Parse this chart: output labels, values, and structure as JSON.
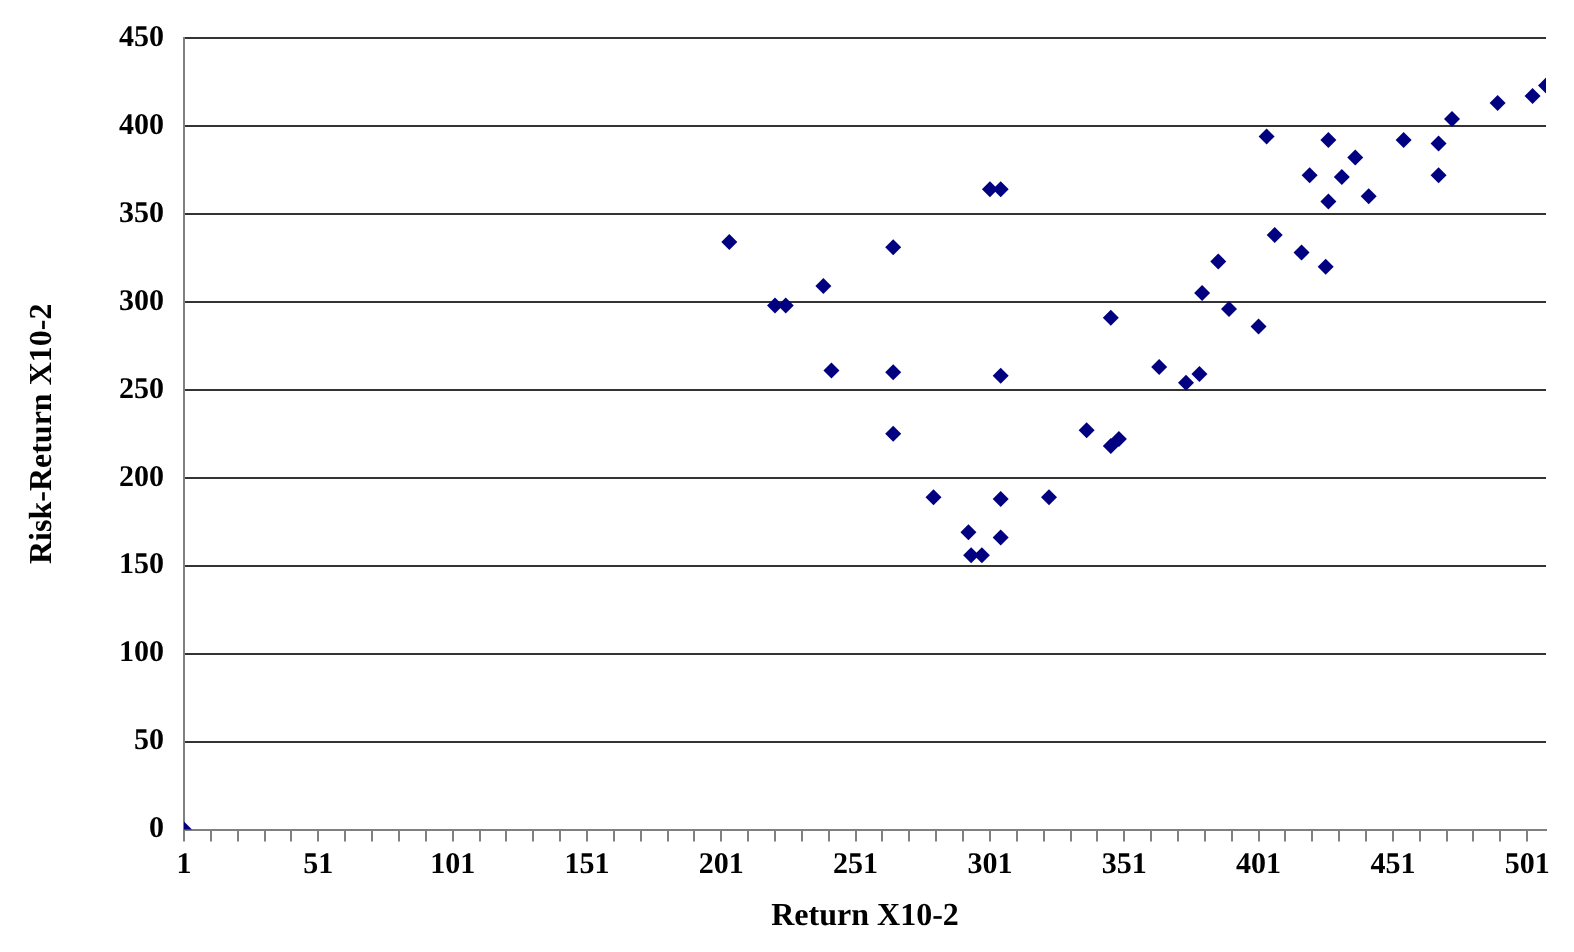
{
  "chart_data": {
    "type": "scatter",
    "xlabel": "Return X10-2",
    "ylabel": "Risk-Return X10-2",
    "marker": "diamond",
    "grid": "y",
    "xlim": [
      1,
      508
    ],
    "ylim": [
      0,
      450
    ],
    "xticks": [
      1,
      {
        "value": 11,
        "label": null
      },
      {
        "value": 21,
        "label": null
      },
      {
        "value": 31,
        "label": null
      },
      {
        "value": 41,
        "label": null
      },
      51,
      {
        "value": 61,
        "label": null
      },
      {
        "value": 71,
        "label": null
      },
      {
        "value": 81,
        "label": null
      },
      {
        "value": 91,
        "label": null
      },
      101,
      {
        "value": 111,
        "label": null
      },
      {
        "value": 121,
        "label": null
      },
      {
        "value": 131,
        "label": null
      },
      {
        "value": 141,
        "label": null
      },
      151,
      {
        "value": 161,
        "label": null
      },
      {
        "value": 171,
        "label": null
      },
      {
        "value": 181,
        "label": null
      },
      {
        "value": 191,
        "label": null
      },
      201,
      {
        "value": 211,
        "label": null
      },
      {
        "value": 221,
        "label": null
      },
      {
        "value": 231,
        "label": null
      },
      {
        "value": 241,
        "label": null
      },
      251,
      {
        "value": 261,
        "label": null
      },
      {
        "value": 271,
        "label": null
      },
      {
        "value": 281,
        "label": null
      },
      {
        "value": 291,
        "label": null
      },
      301,
      {
        "value": 311,
        "label": null
      },
      {
        "value": 321,
        "label": null
      },
      {
        "value": 331,
        "label": null
      },
      {
        "value": 341,
        "label": null
      },
      351,
      {
        "value": 361,
        "label": null
      },
      {
        "value": 371,
        "label": null
      },
      {
        "value": 381,
        "label": null
      },
      {
        "value": 391,
        "label": null
      },
      401,
      {
        "value": 411,
        "label": null
      },
      {
        "value": 421,
        "label": null
      },
      {
        "value": 431,
        "label": null
      },
      {
        "value": 441,
        "label": null
      },
      451,
      {
        "value": 461,
        "label": null
      },
      {
        "value": 471,
        "label": null
      },
      {
        "value": 481,
        "label": null
      },
      {
        "value": 491,
        "label": null
      },
      501
    ],
    "yticks": [
      0,
      50,
      100,
      150,
      200,
      250,
      300,
      350,
      400,
      450
    ],
    "series": [
      {
        "color": "#000080",
        "x": [
          1,
          204,
          221,
          225,
          239,
          242,
          265,
          265,
          265,
          280,
          293,
          294,
          298,
          301,
          305,
          305,
          305,
          305,
          323,
          337,
          346,
          349,
          346,
          364,
          374,
          379,
          380,
          386,
          390,
          401,
          404,
          407,
          417,
          420,
          426,
          427,
          427,
          432,
          437,
          442,
          455,
          468,
          468,
          473,
          490,
          503,
          508
        ],
        "values": [
          0,
          334,
          298,
          298,
          309,
          261,
          331,
          260,
          225,
          189,
          169,
          156,
          156,
          364,
          364,
          258,
          188,
          166,
          189,
          227,
          218,
          222,
          291,
          263,
          254,
          259,
          305,
          323,
          296,
          286,
          394,
          338,
          328,
          372,
          320,
          392,
          357,
          371,
          382,
          360,
          392,
          390,
          372,
          404,
          413,
          417,
          423
        ]
      }
    ]
  }
}
